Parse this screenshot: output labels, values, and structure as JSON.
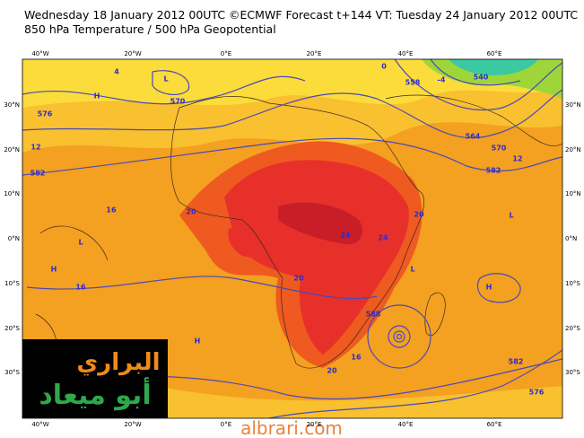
{
  "header": {
    "title": "Wednesday 18 January 2012 00UTC ©ECMWF Forecast t+144 VT: Tuesday 24 January 2012 00UTC",
    "subtitle": "850 hPa Temperature / 500 hPa Geopotential"
  },
  "map": {
    "longitude_labels": [
      "40°W",
      "20°W",
      "0°E",
      "20°E",
      "40°E",
      "60°E"
    ],
    "latitude_labels": [
      "30°N",
      "20°N",
      "10°N",
      "0°N",
      "10°S",
      "20°S",
      "30°S"
    ],
    "contour_labels": [
      "4",
      "576",
      "570",
      "12",
      "582",
      "16",
      "20",
      "16",
      "24",
      "20",
      "20",
      "16",
      "588",
      "582",
      "576",
      "564",
      "570",
      "582",
      "12",
      "558",
      "540",
      "0",
      "-4",
      "20",
      "24",
      "L",
      "L",
      "H",
      "H",
      "H",
      "L",
      "H",
      "L"
    ]
  },
  "logo": {
    "line1": "البراري",
    "line2": "أبو ميعاد"
  },
  "watermark": "albrari.com"
}
